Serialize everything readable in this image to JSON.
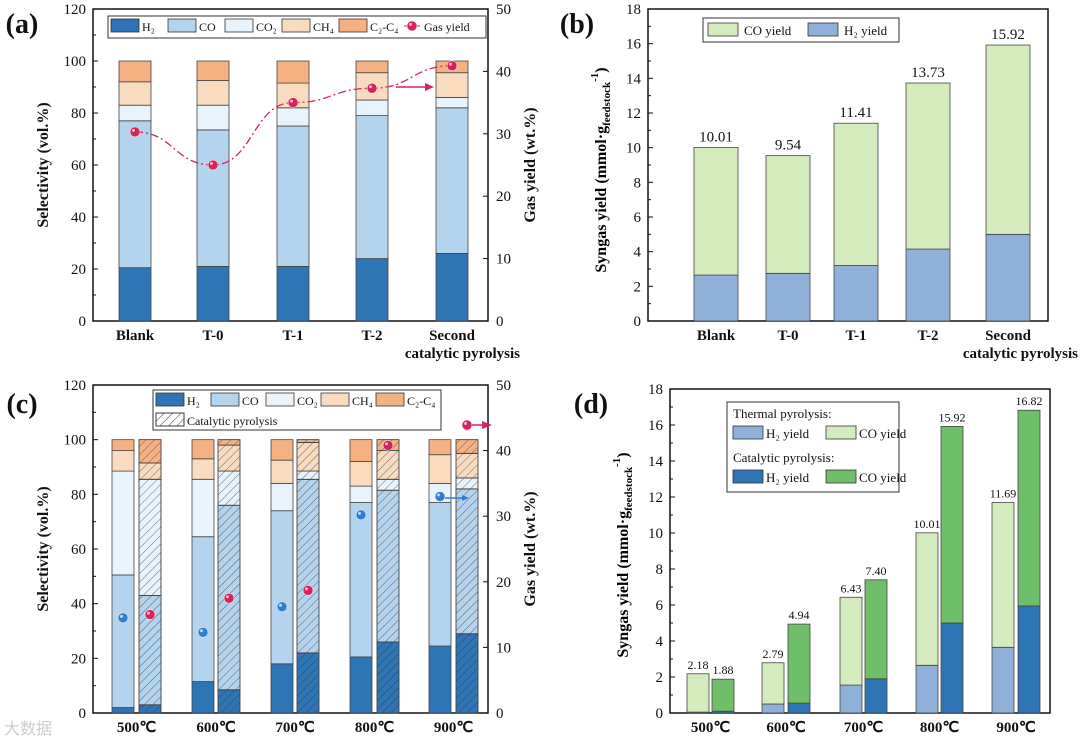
{
  "chart_data": [
    {
      "panel_label": "(a)",
      "type": "bar",
      "stacked": true,
      "categories": [
        "Blank",
        "T-0",
        "T-1",
        "T-2",
        "Second"
      ],
      "category_note": "catalytic pyrolysis",
      "ylabel": "Selectivity (vol.%)",
      "y2label": "Gas yield (wt.%)",
      "ylim": [
        0,
        120
      ],
      "y2lim": [
        0,
        50
      ],
      "series": [
        {
          "name": "H₂",
          "color": "#2e75b6",
          "values": [
            20.5,
            21,
            21,
            24,
            26
          ]
        },
        {
          "name": "CO",
          "color": "#b4d3ed",
          "values": [
            56.5,
            52.5,
            54,
            55,
            56
          ]
        },
        {
          "name": "CO₂",
          "color": "#e9f3fb",
          "values": [
            6,
            9.5,
            7,
            6,
            4
          ]
        },
        {
          "name": "CH₄",
          "color": "#f9dcc0",
          "values": [
            9,
            9.5,
            9.5,
            10.5,
            9.5
          ]
        },
        {
          "name": "C₂-C₄",
          "color": "#f6b183",
          "values": [
            8,
            7.5,
            8.5,
            4.5,
            4.5
          ]
        }
      ],
      "line_series": {
        "name": "Gas yield",
        "color": "#d6245a",
        "values": [
          30.3,
          25.0,
          35.0,
          37.3,
          40.9
        ]
      }
    },
    {
      "panel_label": "(b)",
      "type": "bar",
      "stacked": true,
      "categories": [
        "Blank",
        "T-0",
        "T-1",
        "T-2",
        "Second"
      ],
      "category_note": "catalytic pyrolysis",
      "ylabel_parts": [
        "Syngas yield (mmol·g",
        "feedstock",
        "-1",
        ")"
      ],
      "ylim": [
        0,
        18
      ],
      "series": [
        {
          "name": "H₂ yield",
          "color": "#8fb0d9",
          "values": [
            2.65,
            2.75,
            3.2,
            4.15,
            5.0
          ]
        },
        {
          "name": "CO yield",
          "color": "#d4ecbd",
          "values": [
            7.36,
            6.79,
            8.21,
            9.58,
            10.92
          ]
        }
      ],
      "totals": [
        "10.01",
        "9.54",
        "11.41",
        "13.73",
        "15.92"
      ]
    },
    {
      "panel_label": "(c)",
      "type": "bar",
      "stacked": true,
      "categories": [
        "500℃",
        "600℃",
        "700℃",
        "800℃",
        "900℃"
      ],
      "ylabel": "Selectivity (vol.%)",
      "y2label": "Gas yield (wt.%)",
      "ylim": [
        0,
        120
      ],
      "y2lim": [
        0,
        50
      ],
      "hatch_legend": "Catalytic pyrolysis",
      "series_names": [
        "H₂",
        "CO",
        "CO₂",
        "CH₄",
        "C₂-C₄"
      ],
      "colors": [
        "#2e75b6",
        "#b4d3ed",
        "#e9f3fb",
        "#f9dcc0",
        "#f6b183"
      ],
      "thermal": [
        [
          2,
          48.5,
          38,
          7.5,
          4
        ],
        [
          11.5,
          53,
          21,
          7.5,
          7
        ],
        [
          18,
          56,
          10,
          8.5,
          7.5
        ],
        [
          20.5,
          56.5,
          6,
          9,
          8
        ],
        [
          24.5,
          52.5,
          7,
          10.5,
          5.5
        ]
      ],
      "catalytic": [
        [
          3,
          40,
          42.5,
          6,
          8.5
        ],
        [
          8.5,
          67.5,
          12.5,
          9.5,
          2
        ],
        [
          22,
          63.5,
          3,
          10.5,
          1
        ],
        [
          26,
          55.5,
          4,
          10.5,
          4
        ],
        [
          29,
          53,
          4,
          9,
          5
        ]
      ],
      "gas_yield_thermal": {
        "color": "#2f7fd0",
        "values": [
          14.5,
          12.3,
          16.2,
          30.2,
          33.0
        ]
      },
      "gas_yield_catalytic": {
        "color": "#d6245a",
        "values": [
          15.0,
          17.5,
          18.7,
          40.8,
          43.8
        ]
      }
    },
    {
      "panel_label": "(d)",
      "type": "bar",
      "stacked": true,
      "categories": [
        "500℃",
        "600℃",
        "700℃",
        "800℃",
        "900℃"
      ],
      "ylabel_parts": [
        "Syngas yield (mmol·g",
        "feedstock",
        "-1",
        ")"
      ],
      "ylim": [
        0,
        18
      ],
      "legend_groups": [
        "Thermal pyrolysis:",
        "Catalytic pyrolysis:"
      ],
      "thermal": {
        "H2": {
          "name": "H₂ yield",
          "color": "#8fb0d9",
          "values": [
            0.05,
            0.5,
            1.55,
            2.65,
            3.65
          ]
        },
        "CO": {
          "name": "CO yield",
          "color": "#d4ecbd",
          "values": [
            2.13,
            2.29,
            4.88,
            7.36,
            8.04
          ]
        },
        "totals": [
          "2.18",
          "2.79",
          "6.43",
          "10.01",
          "11.69"
        ]
      },
      "catalytic": {
        "H2": {
          "name": "H₂ yield",
          "color": "#2e75b6",
          "values": [
            0.1,
            0.55,
            1.9,
            5.0,
            5.95
          ]
        },
        "CO": {
          "name": "CO yield",
          "color": "#6fbf6a",
          "values": [
            1.78,
            4.39,
            5.5,
            10.92,
            10.87
          ]
        },
        "totals": [
          "1.88",
          "4.94",
          "7.40",
          "15.92",
          "16.82"
        ]
      }
    }
  ],
  "watermark": "大数据"
}
